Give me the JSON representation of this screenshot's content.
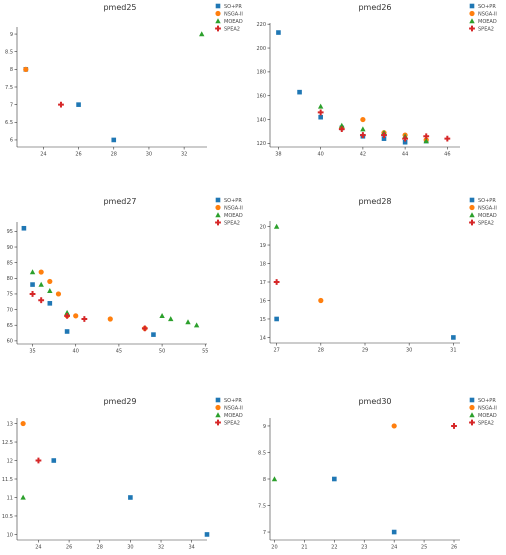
{
  "colors": {
    "SO+PR": "#1f77b4",
    "NSGA-II": "#ff7f0e",
    "MOEAD": "#2ca02c",
    "SPEA2": "#d62728"
  },
  "chart_data": [
    {
      "type": "scatter",
      "title": "pmed25",
      "xlabel": "",
      "ylabel": "",
      "xlim": [
        22.5,
        33.3
      ],
      "ylim": [
        5.8,
        9.2
      ],
      "xticks": [
        24,
        26,
        28,
        30,
        32
      ],
      "yticks": [
        6,
        6.5,
        7,
        7.5,
        8,
        8.5,
        9
      ],
      "legend": [
        "SO+PR",
        "NSGA-II",
        "MOEAD",
        "SPEA2"
      ],
      "legend_labels": [
        "SO+PR",
        "NSGA-II",
        "MOEAD",
        "SPEA2"
      ],
      "series": [
        {
          "name": "SO+PR",
          "points": [
            [
              23,
              8
            ],
            [
              26,
              7
            ],
            [
              28,
              6
            ]
          ]
        },
        {
          "name": "NSGA-II",
          "points": [
            [
              23,
              8
            ]
          ]
        },
        {
          "name": "MOEAD",
          "points": [
            [
              33,
              9
            ]
          ]
        },
        {
          "name": "SPEA2",
          "points": [
            [
              25,
              7
            ]
          ]
        }
      ]
    },
    {
      "type": "scatter",
      "title": "pmed26",
      "xlabel": "",
      "ylabel": "",
      "xlim": [
        37.6,
        46.6
      ],
      "ylim": [
        117,
        221
      ],
      "xticks": [
        38,
        40,
        42,
        44,
        46
      ],
      "yticks": [
        120,
        140,
        160,
        180,
        200,
        220
      ],
      "legend": [
        "SO+PR",
        "NSGA-II",
        "MOEAD",
        "SPEA2"
      ],
      "legend_labels": [
        "SO+PR",
        "NSGA-II",
        "MOEAD",
        "SPEA2"
      ],
      "series": [
        {
          "name": "SO+PR",
          "points": [
            [
              38,
              213
            ],
            [
              39,
              163
            ],
            [
              40,
              142
            ],
            [
              41,
              133
            ],
            [
              42,
              126
            ],
            [
              43,
              124
            ],
            [
              44,
              121
            ],
            [
              45,
              122
            ]
          ]
        },
        {
          "name": "NSGA-II",
          "points": [
            [
              41,
              133
            ],
            [
              42,
              140
            ],
            [
              43,
              129
            ],
            [
              44,
              127
            ],
            [
              45,
              123
            ]
          ]
        },
        {
          "name": "MOEAD",
          "points": [
            [
              40,
              151
            ],
            [
              41,
              135
            ],
            [
              42,
              132
            ],
            [
              43,
              129
            ],
            [
              44,
              126
            ],
            [
              45,
              122
            ]
          ]
        },
        {
          "name": "SPEA2",
          "points": [
            [
              40,
              146
            ],
            [
              41,
              132
            ],
            [
              42,
              127
            ],
            [
              43,
              127
            ],
            [
              44,
              124
            ],
            [
              45,
              126
            ],
            [
              46,
              124
            ]
          ]
        }
      ]
    },
    {
      "type": "scatter",
      "title": "pmed27",
      "xlabel": "",
      "ylabel": "",
      "xlim": [
        33.2,
        55.2
      ],
      "ylim": [
        59,
        98
      ],
      "xticks": [
        35,
        40,
        45,
        50,
        55
      ],
      "yticks": [
        60,
        65,
        70,
        75,
        80,
        85,
        90,
        95
      ],
      "legend": [
        "SO+PR",
        "NSGA-II",
        "MOEAD",
        "SPEA2"
      ],
      "legend_labels": [
        "SO+PR",
        "NSGA-II",
        "MOEAD",
        "SPEA2"
      ],
      "series": [
        {
          "name": "SO+PR",
          "points": [
            [
              34,
              96
            ],
            [
              35,
              78
            ],
            [
              37,
              72
            ],
            [
              39,
              63
            ],
            [
              49,
              62
            ]
          ]
        },
        {
          "name": "NSGA-II",
          "points": [
            [
              36,
              82
            ],
            [
              37,
              79
            ],
            [
              38,
              75
            ],
            [
              39,
              68
            ],
            [
              40,
              68
            ],
            [
              44,
              67
            ],
            [
              48,
              64
            ]
          ]
        },
        {
          "name": "MOEAD",
          "points": [
            [
              35,
              82
            ],
            [
              36,
              78
            ],
            [
              37,
              76
            ],
            [
              39,
              69
            ],
            [
              50,
              68
            ],
            [
              51,
              67
            ],
            [
              53,
              66
            ],
            [
              54,
              65
            ]
          ]
        },
        {
          "name": "SPEA2",
          "points": [
            [
              35,
              75
            ],
            [
              36,
              73
            ],
            [
              39,
              68
            ],
            [
              41,
              67
            ],
            [
              48,
              64
            ]
          ]
        }
      ]
    },
    {
      "type": "scatter",
      "title": "pmed28",
      "xlabel": "",
      "ylabel": "",
      "xlim": [
        26.85,
        31.15
      ],
      "ylim": [
        13.7,
        20.3
      ],
      "xticks": [
        27,
        28,
        29,
        30,
        31
      ],
      "yticks": [
        14,
        15,
        16,
        17,
        18,
        19,
        20
      ],
      "legend": [
        "SO+PR",
        "NSGA-II",
        "MOEAD",
        "SPEA2"
      ],
      "legend_labels": [
        "SO+PR",
        "NSGA-II",
        "MOEAD",
        "SPEA2"
      ],
      "series": [
        {
          "name": "SO+PR",
          "points": [
            [
              27,
              15
            ],
            [
              31,
              14
            ]
          ]
        },
        {
          "name": "NSGA-II",
          "points": [
            [
              28,
              16
            ]
          ]
        },
        {
          "name": "MOEAD",
          "points": [
            [
              27,
              20
            ]
          ]
        },
        {
          "name": "SPEA2",
          "points": [
            [
              27,
              17
            ]
          ]
        }
      ]
    },
    {
      "type": "scatter",
      "title": "pmed29",
      "xlabel": "",
      "ylabel": "",
      "xlim": [
        22.6,
        35.0
      ],
      "ylim": [
        9.85,
        13.15
      ],
      "xticks": [
        24,
        26,
        28,
        30,
        32,
        34
      ],
      "yticks": [
        10,
        10.5,
        11,
        11.5,
        12,
        12.5,
        13
      ],
      "legend": [
        "SO+PR",
        "NSGA-II",
        "MOEAD",
        "SPEA2"
      ],
      "legend_labels": [
        "SO+PR",
        "NSGA-II",
        "MOEAD",
        "SPEA2"
      ],
      "series": [
        {
          "name": "SO+PR",
          "points": [
            [
              25,
              12
            ],
            [
              30,
              11
            ],
            [
              35,
              10
            ]
          ]
        },
        {
          "name": "NSGA-II",
          "points": [
            [
              23,
              13
            ]
          ]
        },
        {
          "name": "MOEAD",
          "points": [
            [
              23,
              11
            ]
          ]
        },
        {
          "name": "SPEA2",
          "points": [
            [
              24,
              12
            ]
          ]
        }
      ]
    },
    {
      "type": "scatter",
      "title": "pmed30",
      "xlabel": "",
      "ylabel": "",
      "xlim": [
        19.85,
        26.2
      ],
      "ylim": [
        6.85,
        9.15
      ],
      "xticks": [
        20,
        21,
        22,
        23,
        24,
        25,
        26
      ],
      "yticks": [
        7,
        7.5,
        8,
        8.5,
        9
      ],
      "legend": [
        "SO+PR",
        "NSGA-II",
        "MOEAD",
        "SPEA2"
      ],
      "legend_labels": [
        "SO+PR",
        "NSGA-II",
        "MOEAD",
        "SPEA2"
      ],
      "series": [
        {
          "name": "SO+PR",
          "points": [
            [
              22,
              8
            ],
            [
              24,
              7
            ]
          ]
        },
        {
          "name": "NSGA-II",
          "points": [
            [
              24,
              9
            ]
          ]
        },
        {
          "name": "MOEAD",
          "points": [
            [
              20,
              8
            ]
          ]
        },
        {
          "name": "SPEA2",
          "points": [
            [
              26,
              9
            ]
          ]
        }
      ]
    }
  ]
}
